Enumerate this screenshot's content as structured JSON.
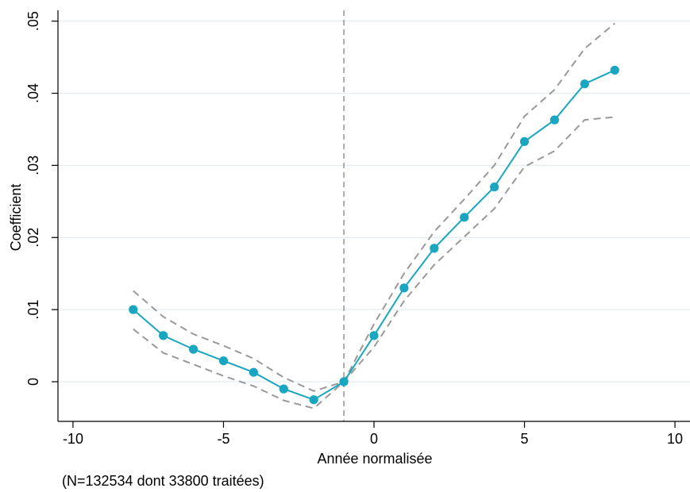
{
  "chart_data": {
    "type": "line",
    "xlabel": "Année normalisée",
    "ylabel": "Coefficient",
    "note": "(N=132534 dont 33800 traitées)",
    "xlim": [
      -10.5,
      10.5
    ],
    "ylim": [
      -0.0055,
      0.0515
    ],
    "xticks": [
      -10,
      -5,
      0,
      5,
      10
    ],
    "xtick_labels": [
      "-10",
      "-5",
      "0",
      "5",
      "10"
    ],
    "yticks": [
      0,
      0.01,
      0.02,
      0.03,
      0.04,
      0.05
    ],
    "ytick_labels": [
      "0",
      ".01",
      ".02",
      ".03",
      ".04",
      ".05"
    ],
    "grid": "horizontal",
    "reference_line_x": -1,
    "x": [
      -8,
      -7,
      -6,
      -5,
      -4,
      -3,
      -2,
      -1,
      0,
      1,
      2,
      3,
      4,
      5,
      6,
      7,
      8
    ],
    "series": [
      {
        "role": "estimate",
        "values": [
          0.01,
          0.0064,
          0.0045,
          0.0029,
          0.0013,
          -0.001,
          -0.0025,
          0.0,
          0.0064,
          0.013,
          0.0185,
          0.0228,
          0.027,
          0.0333,
          0.0363,
          0.0413,
          0.0432
        ]
      },
      {
        "role": "upper_ci",
        "values": [
          0.0126,
          0.009,
          0.0066,
          0.005,
          0.0032,
          0.0006,
          -0.0013,
          0.0,
          0.008,
          0.015,
          0.0208,
          0.0253,
          0.03,
          0.0368,
          0.0405,
          0.0462,
          0.0497
        ]
      },
      {
        "role": "lower_ci",
        "values": [
          0.0073,
          0.004,
          0.0024,
          0.0008,
          -0.0006,
          -0.0026,
          -0.0037,
          0.0,
          0.0048,
          0.0112,
          0.0162,
          0.0201,
          0.024,
          0.0298,
          0.032,
          0.0363,
          0.0367
        ]
      }
    ],
    "colors": {
      "estimate": "#1aa5c0",
      "ci": "#999999",
      "reference_line": "#999999",
      "grid": "#e3ecef",
      "axis": "#000000"
    }
  }
}
